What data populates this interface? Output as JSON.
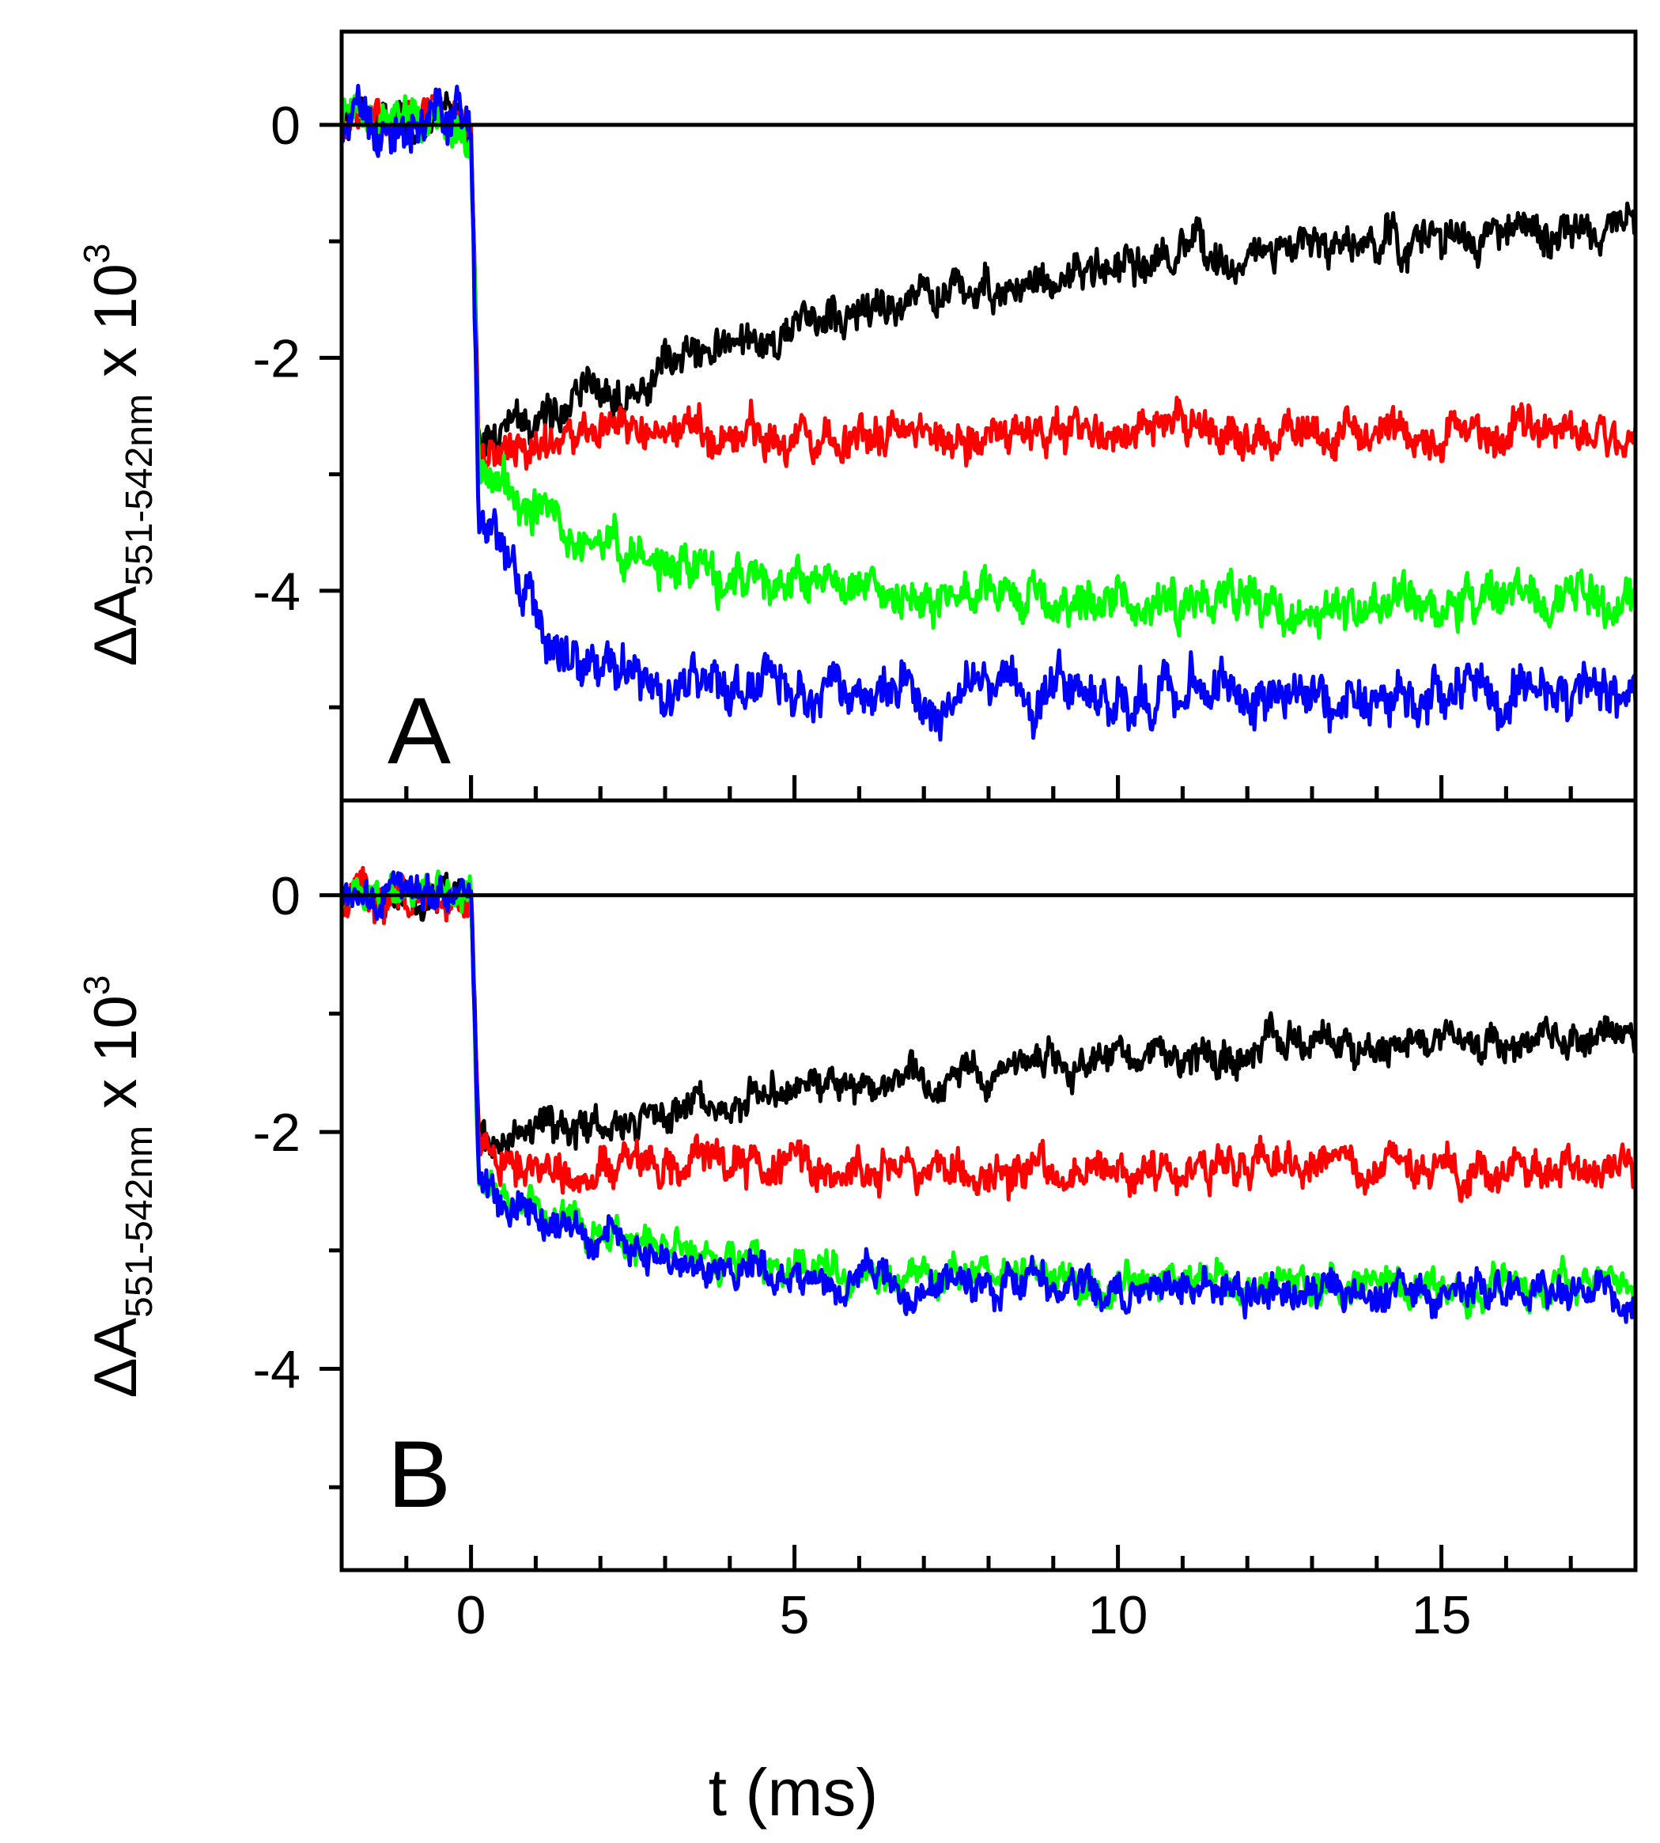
{
  "chart_data": [
    {
      "panel": "A",
      "type": "line",
      "panel_label": "A",
      "ylabel": {
        "prefix": "ΔA",
        "subscript": "551-542nm",
        "suffix": " x 10",
        "superscript": "3"
      },
      "xlabel": "",
      "xlim": [
        -2,
        18
      ],
      "ylim": [
        -5.8,
        0.8
      ],
      "yticks": [
        0,
        -2,
        -4
      ],
      "ytick_labels": [
        "0",
        "-2",
        "-4"
      ],
      "zero_line": true,
      "series": [
        {
          "name": "black",
          "color": "#000000",
          "pre": 0.0,
          "jump": -2.75,
          "tau": 7.0,
          "final": -0.75,
          "noise": 0.16
        },
        {
          "name": "red",
          "color": "#ff0000",
          "pre": 0.0,
          "jump": -2.75,
          "tau": 0.6,
          "final": -2.65,
          "dip": -0.25,
          "noise": 0.16
        },
        {
          "name": "green",
          "color": "#00ff00",
          "pre": 0.0,
          "jump": -2.9,
          "tau": 2.2,
          "final": -4.1,
          "noise": 0.18
        },
        {
          "name": "blue",
          "color": "#0000ff",
          "pre": 0.0,
          "jump": -3.2,
          "tau": 0.9,
          "final": -4.85,
          "noise": 0.2
        }
      ]
    },
    {
      "panel": "B",
      "type": "line",
      "panel_label": "B",
      "ylabel": {
        "prefix": "ΔA",
        "subscript": "551-542nm",
        "suffix": " x 10",
        "superscript": "3"
      },
      "xlabel": "t (ms)",
      "xlim": [
        -2,
        18
      ],
      "xticks": [
        0,
        5,
        10,
        15
      ],
      "xtick_labels": [
        "0",
        "5",
        "10",
        "15"
      ],
      "ylim": [
        -5.7,
        0.8
      ],
      "yticks": [
        0,
        -2,
        -4
      ],
      "ytick_labels": [
        "0",
        "-2",
        "-4"
      ],
      "zero_line": true,
      "series": [
        {
          "name": "black",
          "color": "#000000",
          "pre": 0.0,
          "jump": -2.1,
          "tau": 9.0,
          "final": -1.0,
          "noise": 0.14
        },
        {
          "name": "red",
          "color": "#ff0000",
          "pre": 0.0,
          "jump": -2.2,
          "tau": 1.0,
          "final": -2.3,
          "noise": 0.16
        },
        {
          "name": "green",
          "color": "#00ff00",
          "pre": 0.0,
          "jump": -2.4,
          "tau": 3.0,
          "final": -3.3,
          "noise": 0.14
        },
        {
          "name": "blue",
          "color": "#0000ff",
          "pre": 0.0,
          "jump": -2.5,
          "tau": 2.8,
          "final": -3.35,
          "noise": 0.14
        }
      ]
    }
  ]
}
